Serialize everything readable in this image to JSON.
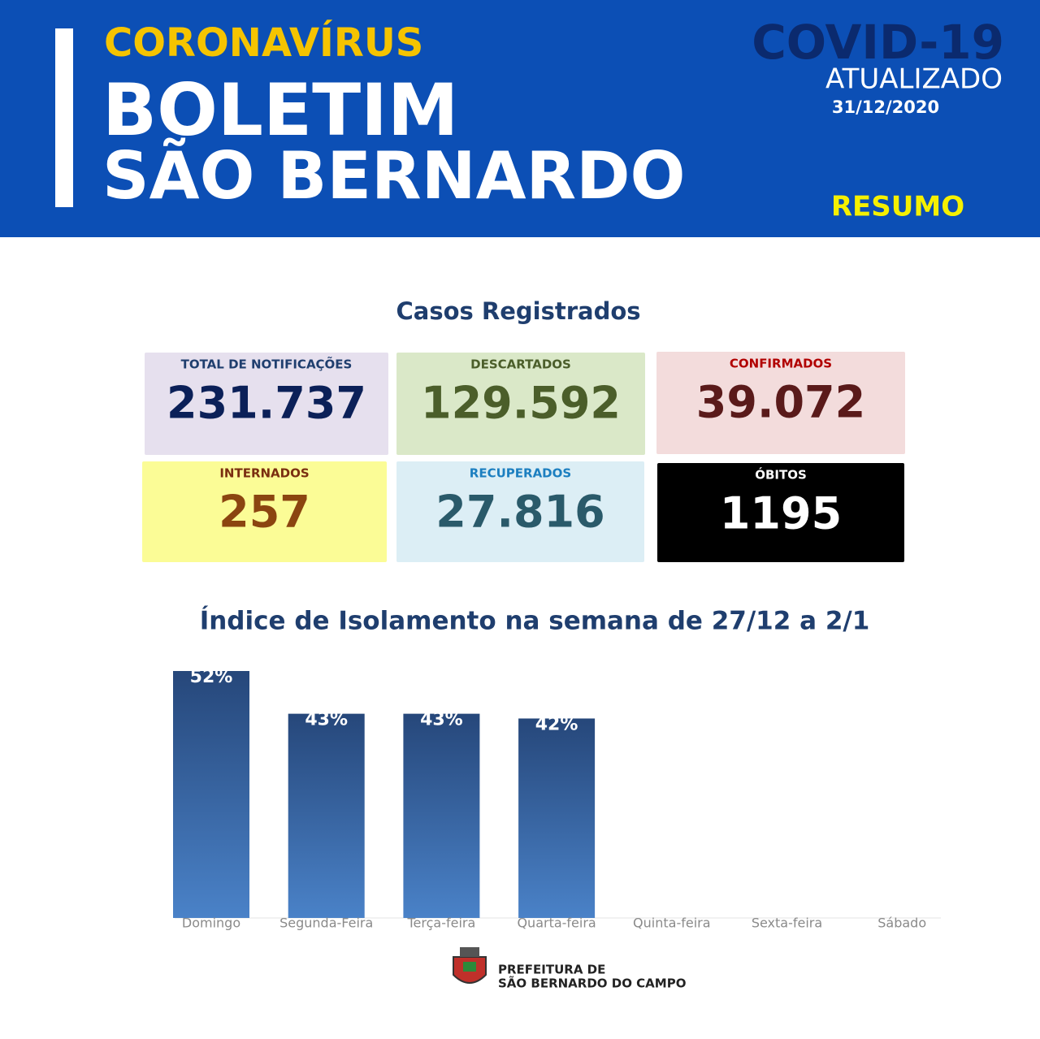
{
  "header": {
    "kicker": "CORONAVÍRUS",
    "title_line1": "BOLETIM",
    "title_line2": "SÃO BERNARDO",
    "badge": "COVID-19",
    "badge_sub": "ATUALIZADO",
    "date": "31/12/2020",
    "section": "RESUMO"
  },
  "cases": {
    "title": "Casos Registrados",
    "cards": [
      {
        "label": "TOTAL DE NOTIFICAÇÕES",
        "value": "231.737"
      },
      {
        "label": "DESCARTADOS",
        "value": "129.592"
      },
      {
        "label": "CONFIRMADOS",
        "value": "39.072"
      },
      {
        "label": "INTERNADOS",
        "value": "257"
      },
      {
        "label": "RECUPERADOS",
        "value": "27.816"
      },
      {
        "label": "ÓBITOS",
        "value": "1195"
      }
    ]
  },
  "chart_data": {
    "type": "bar",
    "title": "Índice de Isolamento na semana de 27/12 a 2/1",
    "categories": [
      "Domingo",
      "Segunda-Feira",
      "Terça-feira",
      "Quarta-feira",
      "Quinta-feira",
      "Sexta-feira",
      "Sábado"
    ],
    "values": [
      52,
      43,
      43,
      42,
      null,
      null,
      null
    ],
    "value_labels": [
      "52%",
      "43%",
      "43%",
      "42%",
      null,
      null,
      null
    ],
    "color": "#3a68a8"
  },
  "footer": {
    "line1": "PREFEITURA DE",
    "line2": "SÃO BERNARDO DO CAMPO"
  }
}
